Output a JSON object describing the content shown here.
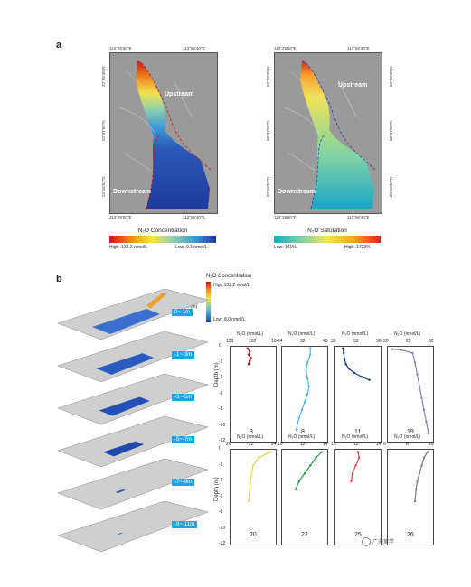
{
  "panel_a": {
    "label": "a",
    "coords": {
      "top_left": "113°25'50\"E",
      "top_right": "113°56'40\"E",
      "bottom_left": "113°25'50\"E",
      "bottom_right": "113°56'40\"E",
      "lat1": "22°58'45\"N",
      "lat2": "22°37'56\"N",
      "lat3": "22°16'52\"N"
    },
    "upstream": "Upstream",
    "downstream": "Downstream",
    "conc_title": "N₂O Concentration",
    "conc_high": "High: 132.2 nmol/L",
    "conc_low": "Low: 9.1 nmol/L",
    "sat_title": "N₂O Saturation",
    "sat_low": "Low: 141%",
    "sat_high": "High: 1723%",
    "colors": {
      "grad_conc": [
        "#c8141a",
        "#f08a1e",
        "#f3e34a",
        "#8fd0ae",
        "#3e9ad6",
        "#1f3a9c"
      ],
      "grad_sat": [
        "#1aa6c8",
        "#7fd2a5",
        "#f0e35a",
        "#f7a02b",
        "#d5271d"
      ]
    }
  },
  "panel_b": {
    "label": "b",
    "legend_title": "N₂O Concentration",
    "legend_high": "High:132.2 nmol/L",
    "legend_low": "Low: 8.0 nmol/L",
    "depth_label": "Depth (m)",
    "layers": [
      "0~-1m",
      "-1~-3m",
      "-3~-5m",
      "-5~-7m",
      "-7~-9m",
      "-9~-11m"
    ]
  },
  "chart_data": [
    {
      "type": "line",
      "station": "3",
      "xlabel": "N₂O (nmol/L)",
      "ylabel": "Depth (m)",
      "xlim": [
        100,
        104
      ],
      "xticks": [
        "100",
        "102",
        "104"
      ],
      "ylim": [
        -12,
        0
      ],
      "yticks": [
        "0",
        "-2",
        "-4",
        "-6",
        "-8",
        "-10",
        "-12"
      ],
      "color": "#b1121a",
      "x": [
        101.5,
        101.7,
        101.6,
        101.8,
        101.7,
        101.6
      ],
      "y": [
        -0.2,
        -0.6,
        -1.0,
        -1.4,
        -1.8,
        -2.2
      ]
    },
    {
      "type": "line",
      "station": "8",
      "xlabel": "N₂O (nmol/L)",
      "ylabel": "",
      "xlim": [
        24,
        40
      ],
      "xticks": [
        "24",
        "32",
        "40"
      ],
      "ylim": [
        -12,
        0
      ],
      "yticks": [
        "0",
        "-2",
        "-4",
        "-6",
        "-8",
        "-10",
        "-12"
      ],
      "color": "#4fb6e8",
      "x": [
        34,
        34,
        33,
        32.5,
        33,
        33.5,
        33,
        32,
        31,
        30,
        29
      ],
      "y": [
        -0.2,
        -1,
        -2,
        -3,
        -4,
        -5,
        -6,
        -7,
        -8,
        -9,
        -10.5
      ]
    },
    {
      "type": "line",
      "station": "11",
      "xlabel": "N₂O (nmol/L)",
      "ylabel": "",
      "xlim": [
        30,
        36
      ],
      "xticks": [
        "30",
        "33",
        "36"
      ],
      "ylim": [
        -12,
        0
      ],
      "yticks": [
        "0",
        "-2",
        "-4",
        "-6",
        "-8",
        "-10",
        "-12"
      ],
      "color": "#0f3d78",
      "x": [
        31,
        31.1,
        31.2,
        31.4,
        31.8,
        32.5,
        33.5,
        34.5
      ],
      "y": [
        -0.2,
        -0.8,
        -1.5,
        -2.2,
        -2.8,
        -3.3,
        -3.8,
        -4.2
      ]
    },
    {
      "type": "line",
      "station": "19",
      "xlabel": "N₂O (nmol/L)",
      "ylabel": "",
      "xlim": [
        20,
        30
      ],
      "xticks": [
        "20",
        "25",
        "30"
      ],
      "ylim": [
        -12,
        0
      ],
      "yticks": [
        "0",
        "-2",
        "-4",
        "-6",
        "-8",
        "-10",
        "-12"
      ],
      "color": "#8a7fb8",
      "x": [
        21,
        23,
        25.5,
        26,
        26.5,
        27,
        27.5,
        28,
        28.5,
        29
      ],
      "y": [
        -0.3,
        -0.4,
        -0.8,
        -2,
        -3.5,
        -5,
        -6.5,
        -8,
        -9.5,
        -11
      ]
    },
    {
      "type": "line",
      "station": "20",
      "xlabel": "N₂O (nmol/L)",
      "ylabel": "Depth (m)",
      "xlim": [
        20,
        24
      ],
      "xticks": [
        "20",
        "22",
        "24"
      ],
      "ylim": [
        -12,
        0
      ],
      "yticks": [
        "0",
        "-2",
        "-4",
        "-6",
        "-8",
        "-10",
        "-12"
      ],
      "color": "#e8d84a",
      "x": [
        23.5,
        22.5,
        22,
        21.8,
        21.7,
        21.6
      ],
      "y": [
        -0.3,
        -1,
        -2,
        -3.5,
        -5,
        -6.5
      ]
    },
    {
      "type": "line",
      "station": "22",
      "xlabel": "N₂O (nmol/L)",
      "ylabel": "",
      "xlim": [
        10,
        14
      ],
      "xticks": [
        "10",
        "12",
        "14"
      ],
      "ylim": [
        -12,
        0
      ],
      "yticks": [
        "0",
        "-2",
        "-4",
        "-6",
        "-8",
        "-10",
        "-12"
      ],
      "color": "#2a9a4a",
      "x": [
        13.5,
        13,
        12.5,
        12,
        11.5,
        11.2
      ],
      "y": [
        -0.3,
        -1,
        -2,
        -3,
        -4,
        -5
      ]
    },
    {
      "type": "line",
      "station": "25",
      "xlabel": "N₂O (nmol/L)",
      "ylabel": "",
      "xlim": [
        10,
        14
      ],
      "xticks": [
        "10",
        "12",
        "14"
      ],
      "ylim": [
        -12,
        0
      ],
      "yticks": [
        "0",
        "-2",
        "-4",
        "-6",
        "-8",
        "-10",
        "-12"
      ],
      "color": "#e04848",
      "x": [
        12,
        12.1,
        11.8,
        11.5,
        11.4
      ],
      "y": [
        -0.3,
        -1,
        -2,
        -3,
        -4
      ]
    },
    {
      "type": "line",
      "station": "26",
      "xlabel": "N₂O (nmol/L)",
      "ylabel": "",
      "xlim": [
        6,
        10
      ],
      "xticks": [
        "6",
        "8",
        "10"
      ],
      "ylim": [
        -12,
        0
      ],
      "yticks": [
        "0",
        "-2",
        "-4",
        "-6",
        "-8",
        "-10",
        "-12"
      ],
      "color": "#7a7a90",
      "x": [
        9.5,
        9.2,
        9,
        8.8,
        8.6,
        8.5,
        8.4
      ],
      "y": [
        -0.3,
        -1,
        -2,
        -3,
        -4,
        -5,
        -6.5
      ]
    }
  ],
  "watermark": "广海第学"
}
